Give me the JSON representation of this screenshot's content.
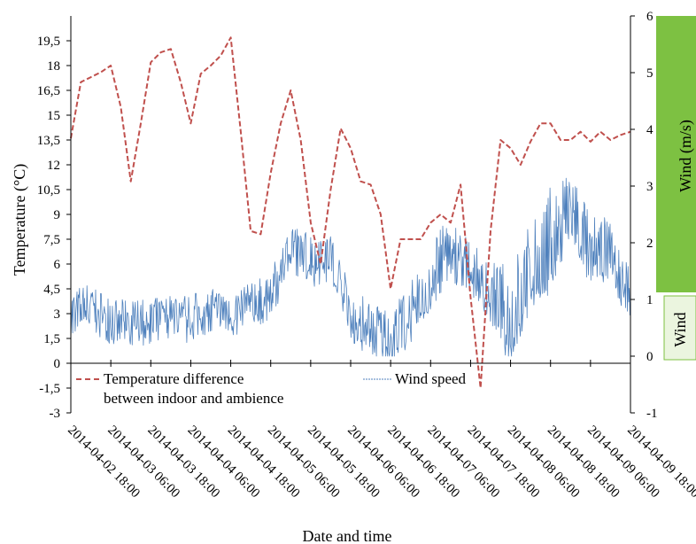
{
  "chart_data": {
    "type": "line",
    "title": "",
    "xlabel": "Date and time",
    "ylabel_left": "Temperature (°C)",
    "ylabel_right": "Wind (m/s)",
    "ylabel_right_fragment": "Wind",
    "x_ticks": [
      "2014-04-02 18:00",
      "2014-04-03 06:00",
      "2014-04-03 18:00",
      "2014-04-04 06:00",
      "2014-04-04 18:00",
      "2014-04-05 06:00",
      "2014-04-05 18:00",
      "2014-04-06 06:00",
      "2014-04-06 18:00",
      "2014-04-07 06:00",
      "2014-04-07 18:00",
      "2014-04-08 06:00",
      "2014-04-08 18:00",
      "2014-04-09 06:00",
      "2014-04-09 18:00"
    ],
    "xlim": [
      "2014-04-02 18:00",
      "2014-04-09 18:00"
    ],
    "y_left_ticks": [
      "-3",
      "-1,5",
      "0",
      "1,5",
      "3",
      "4,5",
      "6",
      "7,5",
      "9",
      "10,5",
      "12",
      "13,5",
      "15",
      "16,5",
      "18",
      "19,5"
    ],
    "y_left_lim": [
      -3,
      21
    ],
    "y_right_ticks": [
      "-1",
      "0",
      "1",
      "2",
      "3",
      "4",
      "5",
      "6"
    ],
    "y_right_lim": [
      -1,
      6
    ],
    "grid": false,
    "legend_position": "bottom-inside",
    "colors": {
      "temperature": "#c0504d",
      "wind": "#4f81bd",
      "panel": "#7dc142"
    },
    "series": [
      {
        "name": "Temperature difference between indoor and ambience",
        "axis": "left",
        "style": "dashed",
        "x": [
          "2014-04-02 18:00",
          "2014-04-02 21:00",
          "2014-04-03 00:00",
          "2014-04-03 03:00",
          "2014-04-03 06:00",
          "2014-04-03 09:00",
          "2014-04-03 12:00",
          "2014-04-03 15:00",
          "2014-04-03 18:00",
          "2014-04-03 21:00",
          "2014-04-04 00:00",
          "2014-04-04 03:00",
          "2014-04-04 06:00",
          "2014-04-04 09:00",
          "2014-04-04 12:00",
          "2014-04-04 15:00",
          "2014-04-04 18:00",
          "2014-04-04 21:00",
          "2014-04-05 00:00",
          "2014-04-05 03:00",
          "2014-04-05 06:00",
          "2014-04-05 09:00",
          "2014-04-05 12:00",
          "2014-04-05 15:00",
          "2014-04-05 18:00",
          "2014-04-05 21:00",
          "2014-04-06 00:00",
          "2014-04-06 03:00",
          "2014-04-06 06:00",
          "2014-04-06 09:00",
          "2014-04-06 12:00",
          "2014-04-06 15:00",
          "2014-04-06 18:00",
          "2014-04-06 21:00",
          "2014-04-07 00:00",
          "2014-04-07 03:00",
          "2014-04-07 06:00",
          "2014-04-07 09:00",
          "2014-04-07 12:00",
          "2014-04-07 15:00",
          "2014-04-07 18:00",
          "2014-04-07 21:00",
          "2014-04-08 00:00",
          "2014-04-08 03:00",
          "2014-04-08 06:00",
          "2014-04-08 09:00",
          "2014-04-08 12:00",
          "2014-04-08 15:00",
          "2014-04-08 18:00",
          "2014-04-08 21:00",
          "2014-04-09 00:00",
          "2014-04-09 03:00",
          "2014-04-09 06:00",
          "2014-04-09 09:00",
          "2014-04-09 12:00",
          "2014-04-09 15:00",
          "2014-04-09 18:00"
        ],
        "values": [
          13.6,
          17.0,
          17.3,
          17.6,
          18.0,
          15.5,
          11.0,
          14.5,
          18.2,
          18.8,
          19.0,
          17.0,
          14.5,
          17.5,
          18.0,
          18.6,
          19.7,
          14.0,
          8.0,
          7.8,
          11.5,
          14.5,
          16.5,
          13.5,
          8.5,
          6.0,
          10.5,
          14.2,
          13.0,
          11.0,
          10.8,
          9.0,
          4.5,
          7.5,
          7.5,
          7.5,
          8.5,
          9.0,
          8.5,
          10.8,
          4.0,
          -1.5,
          8.0,
          13.5,
          13.0,
          12.0,
          13.4,
          14.5,
          14.5,
          13.5,
          13.5,
          14.0,
          13.4,
          14.0,
          13.5,
          13.8,
          14.0
        ]
      },
      {
        "name": "Wind speed",
        "axis": "right",
        "style": "solid",
        "x": [
          "2014-04-02 18:00",
          "2014-04-03 00:00",
          "2014-04-03 06:00",
          "2014-04-03 12:00",
          "2014-04-03 18:00",
          "2014-04-04 00:00",
          "2014-04-04 06:00",
          "2014-04-04 12:00",
          "2014-04-04 18:00",
          "2014-04-05 00:00",
          "2014-04-05 06:00",
          "2014-04-05 12:00",
          "2014-04-05 18:00",
          "2014-04-06 00:00",
          "2014-04-06 06:00",
          "2014-04-06 12:00",
          "2014-04-06 18:00",
          "2014-04-07 00:00",
          "2014-04-07 06:00",
          "2014-04-07 12:00",
          "2014-04-07 18:00",
          "2014-04-08 00:00",
          "2014-04-08 06:00",
          "2014-04-08 12:00",
          "2014-04-08 18:00",
          "2014-04-09 00:00",
          "2014-04-09 06:00",
          "2014-04-09 12:00",
          "2014-04-09 18:00"
        ],
        "values": [
          0.7,
          0.8,
          0.6,
          0.5,
          0.6,
          0.7,
          0.6,
          0.8,
          0.7,
          0.8,
          1.0,
          1.9,
          1.6,
          1.7,
          0.6,
          0.4,
          0.2,
          0.6,
          1.2,
          1.7,
          1.5,
          1.0,
          0.2,
          1.2,
          1.5,
          2.5,
          1.6,
          1.7,
          0.9
        ],
        "band": [
          1.2,
          1.3,
          1.0,
          1.0,
          1.0,
          1.1,
          1.1,
          1.2,
          1.1,
          1.3,
          1.5,
          2.3,
          2.2,
          2.2,
          1.2,
          1.0,
          0.9,
          1.3,
          2.0,
          2.5,
          2.0,
          1.7,
          1.6,
          2.4,
          3.0,
          3.2,
          2.6,
          2.4,
          1.5
        ]
      }
    ]
  }
}
